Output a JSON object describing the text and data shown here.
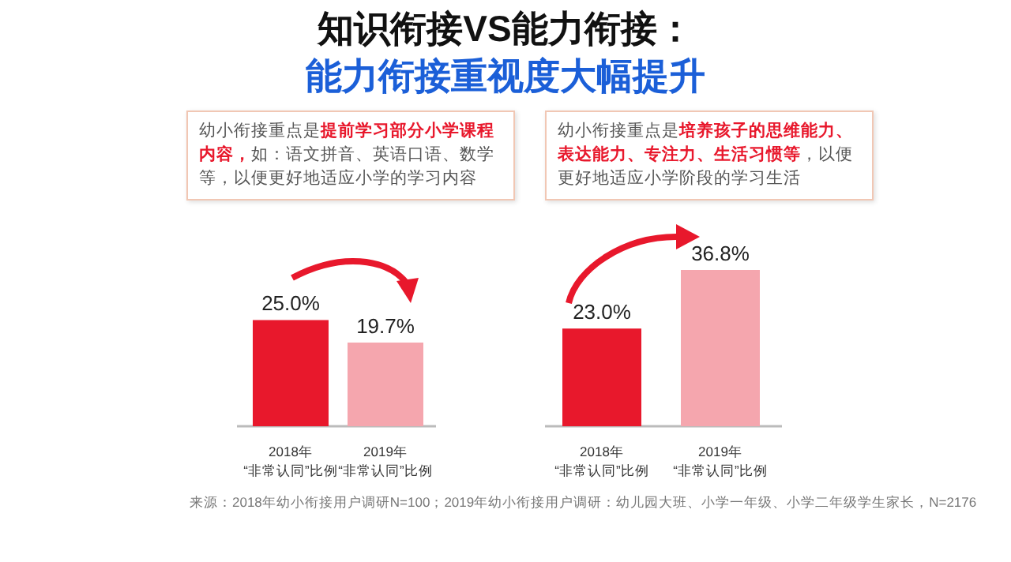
{
  "chart_data": [
    {
      "type": "bar",
      "title": "知识衔接VS能力衔接：",
      "subtitle": "能力衔接重视度大幅提升",
      "relative": false,
      "categories": [
        "2018年\n“非常认同”比例",
        "2019年\n“非常认同”比例"
      ],
      "values": [
        25.0,
        19.7
      ],
      "colors": [
        "#e8182c",
        "#f5a6ae"
      ],
      "value_labels": [
        "25.0%",
        "19.7%"
      ],
      "annotations": [
        "幼小衔接重点是",
        "提前学习部分小学课程内容，",
        "如：语文拼音、英语口语、数学等，以便更好地适应小学的学习内容"
      ]
    },
    {
      "type": "bar",
      "relative": false,
      "categories": [
        "2018年\n“非常认同”比例",
        "2019年\n“非常认同”比例"
      ],
      "values": [
        23.0,
        36.8
      ],
      "colors": [
        "#e8182c",
        "#f5a6ae"
      ],
      "value_labels": [
        "23.0%",
        "36.8%"
      ],
      "annotations": [
        "幼小衔接重点是",
        "培养孩子的思维能力、表达能力、专注力、生活习惯等",
        "，以便更好地适应小学阶段的学习生活",
        "来源：2018年幼小衔接用户调研N=100；2019年幼小衔接用户调研：幼儿园大班、小学一年级、小学二年级学生家长，N=2176"
      ]
    }
  ]
}
